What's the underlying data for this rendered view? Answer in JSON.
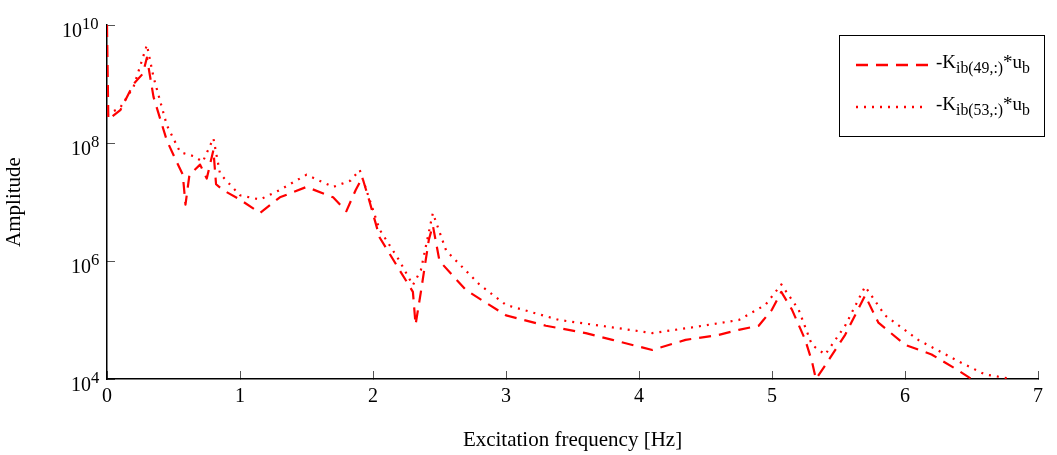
{
  "chart_data": {
    "type": "line",
    "xlabel": "Excitation frequency [Hz]",
    "ylabel": "Amplitude",
    "log": "y",
    "grid": false,
    "legend": "top right",
    "marker": "none",
    "xlim": [
      0,
      7
    ],
    "xticks": [
      0,
      1,
      2,
      3,
      4,
      5,
      6,
      7
    ],
    "ylim": [
      10000,
      10000000000
    ],
    "yticks": [
      {
        "value": 10000,
        "label": "10$^{4}$"
      },
      {
        "value": 1000000,
        "label": "10$^{6}$"
      },
      {
        "value": 100000000,
        "label": "10$^{8}$"
      },
      {
        "value": 10000000000,
        "label": "10$^{10}$"
      }
    ],
    "series": [
      {
        "name": "-K$_{ib(49,:)}$*u$_{b}$",
        "color": "#ff0000",
        "line_style": "dashed",
        "x": [
          0,
          0.01,
          0.1,
          0.2,
          0.27,
          0.3,
          0.35,
          0.45,
          0.52,
          0.57,
          0.59,
          0.62,
          0.7,
          0.75,
          0.8,
          0.82,
          0.87,
          1.0,
          1.15,
          1.3,
          1.5,
          1.7,
          1.8,
          1.87,
          1.92,
          1.97,
          2.05,
          2.2,
          2.3,
          2.32,
          2.36,
          2.42,
          2.45,
          2.5,
          2.7,
          3.0,
          3.3,
          3.6,
          3.8,
          4.1,
          4.35,
          4.6,
          4.75,
          4.9,
          5.0,
          5.07,
          5.15,
          5.25,
          5.3,
          5.33,
          5.4,
          5.55,
          5.7,
          5.8,
          6.0,
          6.2,
          6.4,
          6.5
        ],
        "values": [
          10000000000.0,
          250000000.0,
          360000000.0,
          1000000000.0,
          1500000000.0,
          2800000000.0,
          600000000.0,
          110000000.0,
          50000000.0,
          29000000.0,
          9000000.0,
          29000000.0,
          43000000.0,
          25000000.0,
          76000000.0,
          20000000.0,
          16000000.0,
          11000000.0,
          6500000.0,
          12000000.0,
          18000000.0,
          12000000.0,
          7000000.0,
          16000000.0,
          26000000.0,
          11000000.0,
          2500000.0,
          700000.0,
          300000.0,
          83000.0,
          300000.0,
          2300000.0,
          4000000.0,
          1000000.0,
          320000.0,
          120000.0,
          80000.0,
          60000.0,
          46000.0,
          31000.0,
          46000.0,
          56000.0,
          68000.0,
          80000.0,
          150000.0,
          300000.0,
          150000.0,
          46000.0,
          20000.0,
          10000.0,
          17000.0,
          56000.0,
          260000.0,
          90000.0,
          38000.0,
          26000.0,
          14000.0,
          10000.0
        ]
      },
      {
        "name": "-K$_{ib(53,:)}$*u$_{b}$",
        "color": "#ff0000",
        "line_style": "dotted",
        "x": [
          0,
          0.1,
          0.2,
          0.3,
          0.35,
          0.45,
          0.55,
          0.65,
          0.72,
          0.8,
          0.85,
          1.0,
          1.15,
          1.3,
          1.5,
          1.7,
          1.83,
          1.9,
          1.95,
          2.05,
          2.2,
          2.3,
          2.36,
          2.45,
          2.55,
          2.8,
          3.0,
          3.4,
          3.8,
          4.1,
          4.4,
          4.75,
          4.95,
          5.07,
          5.2,
          5.3,
          5.4,
          5.55,
          5.7,
          5.85,
          6.1,
          6.4,
          6.6,
          6.8
        ],
        "values": [
          300000000.0,
          400000000.0,
          900000000.0,
          4600000000.0,
          1300000000.0,
          200000000.0,
          70000000.0,
          60000000.0,
          48000000.0,
          120000000.0,
          30000000.0,
          13000000.0,
          11000000.0,
          16000000.0,
          29000000.0,
          18000000.0,
          23000000.0,
          35000000.0,
          16000000.0,
          3400000.0,
          1000000.0,
          390000.0,
          700000.0,
          6500000.0,
          1500000.0,
          400000.0,
          180000.0,
          100000.0,
          75000.0,
          60000.0,
          75000.0,
          100000.0,
          180000.0,
          400000.0,
          150000.0,
          38000.0,
          26000.0,
          80000.0,
          370000.0,
          120000.0,
          46000.0,
          20000.0,
          12000.0,
          10000.0
        ]
      }
    ]
  }
}
